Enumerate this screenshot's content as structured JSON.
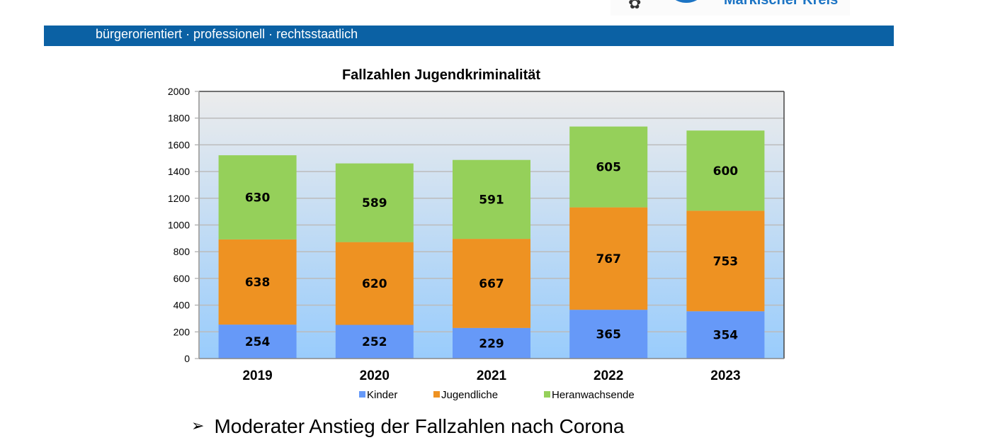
{
  "header": {
    "logo_text": "Märkischer Kreis",
    "tagline": "bürgerorientiert · professionell · rechtsstaatlich",
    "brand_color": "#0b61a4"
  },
  "chart_data": {
    "type": "bar",
    "stacked": true,
    "title": "Fallzahlen Jugendkriminalität",
    "xlabel": "",
    "ylabel": "",
    "categories": [
      "2019",
      "2020",
      "2021",
      "2022",
      "2023"
    ],
    "ylim": [
      0,
      2000
    ],
    "yticks": [
      "0",
      "200",
      "400",
      "600",
      "800",
      "1000",
      "1200",
      "1400",
      "1600",
      "1800",
      "2000"
    ],
    "grid": true,
    "legend_position": "bottom",
    "series": [
      {
        "name": "Kinder",
        "color": "#6699f8",
        "values": [
          254,
          252,
          229,
          365,
          354
        ]
      },
      {
        "name": "Jugendliche",
        "color": "#ee9222",
        "values": [
          638,
          620,
          667,
          767,
          753
        ]
      },
      {
        "name": "Heranwachsende",
        "color": "#95d05a",
        "values": [
          630,
          589,
          591,
          605,
          600
        ]
      }
    ]
  },
  "bullets": [
    {
      "icon": "arrow-bullet-icon",
      "text": "Moderater Anstieg der Fallzahlen nach Corona"
    }
  ]
}
